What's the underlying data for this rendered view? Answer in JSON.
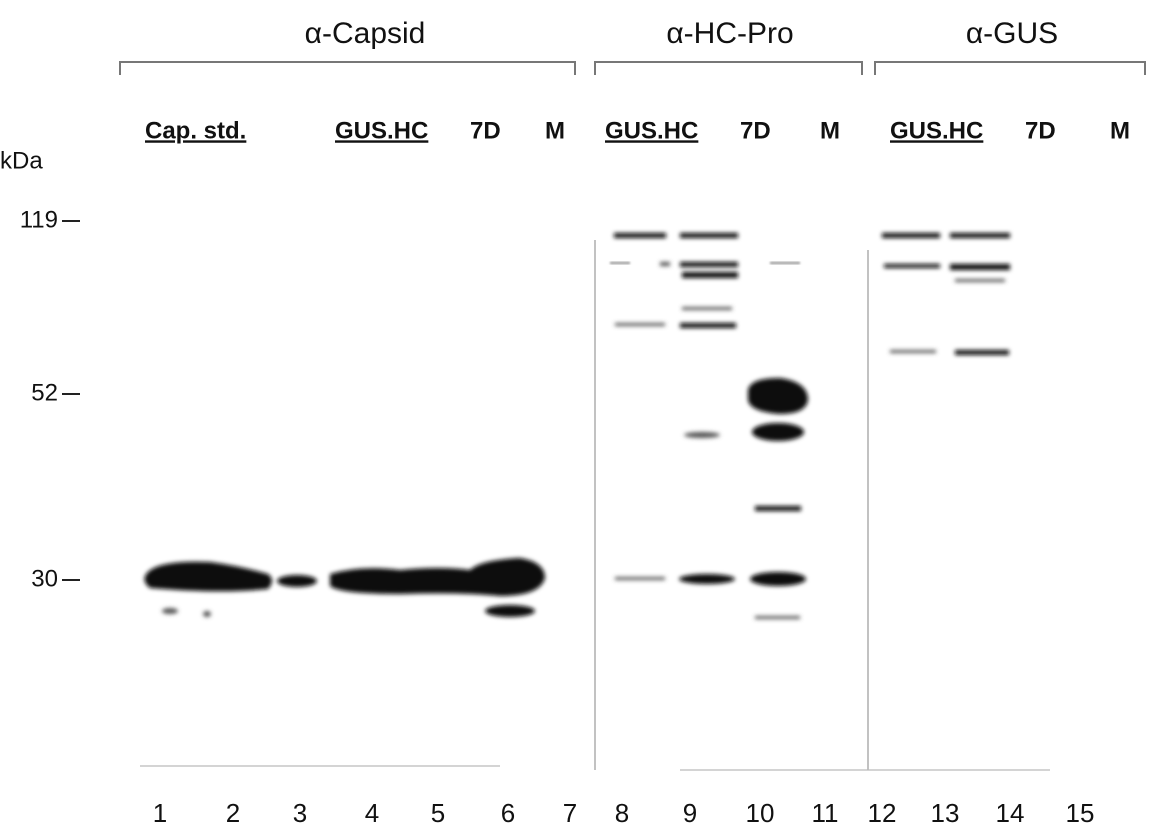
{
  "panels": [
    {
      "title": "α-Capsid",
      "lane_labels": [
        "Cap. std.",
        "GUS.HC",
        "7D",
        "M"
      ]
    },
    {
      "title": "α-HC-Pro",
      "lane_labels": [
        "GUS.HC",
        "7D",
        "M"
      ]
    },
    {
      "title": "α-GUS",
      "lane_labels": [
        "GUS.HC",
        "7D",
        "M"
      ]
    }
  ],
  "unit_label": "kDa",
  "markers": [
    "119",
    "52",
    "30"
  ],
  "lane_numbers": [
    "1",
    "2",
    "3",
    "4",
    "5",
    "6",
    "7",
    "8",
    "9",
    "10",
    "11",
    "12",
    "13",
    "14",
    "15"
  ]
}
